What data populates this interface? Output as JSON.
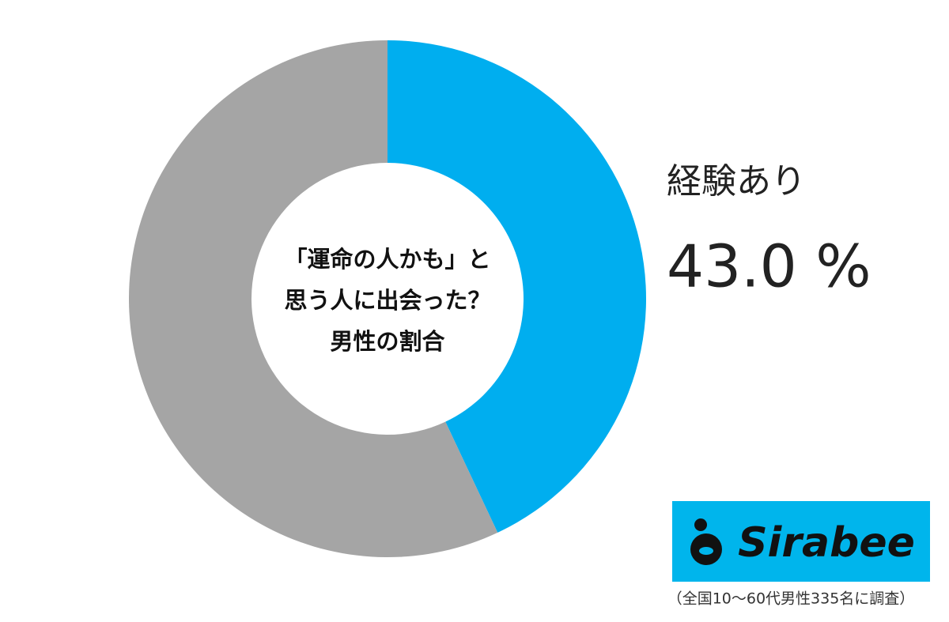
{
  "chart_data": {
    "type": "pie",
    "title_lines": [
      "「運命の人かも」と",
      "思う人に出会った？",
      "男性の割合"
    ],
    "categories": [
      "経験あり",
      null
    ],
    "values": [
      43.0,
      57.0
    ],
    "value_labels": [
      "43.0 %",
      null
    ],
    "colors": [
      "#00aeef",
      "#a5a5a5"
    ],
    "donut": true,
    "logo": "Sirabee",
    "note": "（全国10～60代男性335名に調査）"
  }
}
